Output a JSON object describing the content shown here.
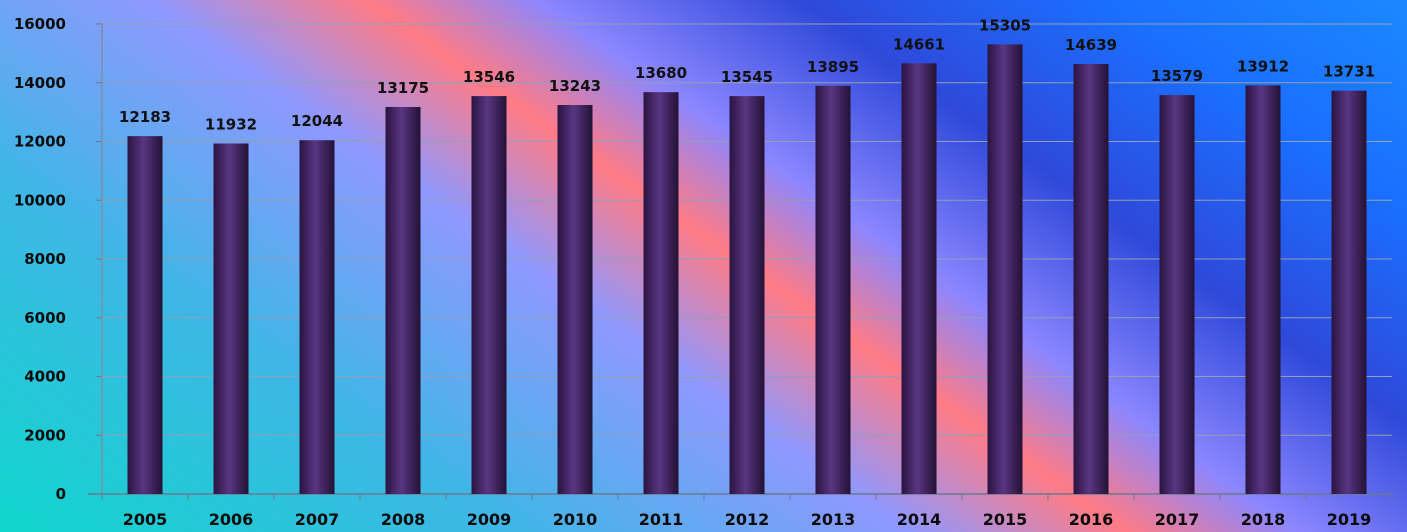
{
  "chart_data": {
    "type": "bar",
    "title": "",
    "xlabel": "",
    "ylabel": "",
    "categories": [
      "2005",
      "2006",
      "2007",
      "2008",
      "2009",
      "2010",
      "2011",
      "2012",
      "2013",
      "2014",
      "2015",
      "2016",
      "2017",
      "2018",
      "2019"
    ],
    "values": [
      12183,
      11932,
      12044,
      13175,
      13546,
      13243,
      13680,
      13545,
      13895,
      14661,
      15305,
      14639,
      13579,
      13912,
      13731
    ],
    "ylim": [
      0,
      16000
    ],
    "yticks": [
      0,
      2000,
      4000,
      6000,
      8000,
      10000,
      12000,
      14000,
      16000
    ],
    "grid": true,
    "bar_color": "#4a2a6e",
    "data_labels": true
  }
}
